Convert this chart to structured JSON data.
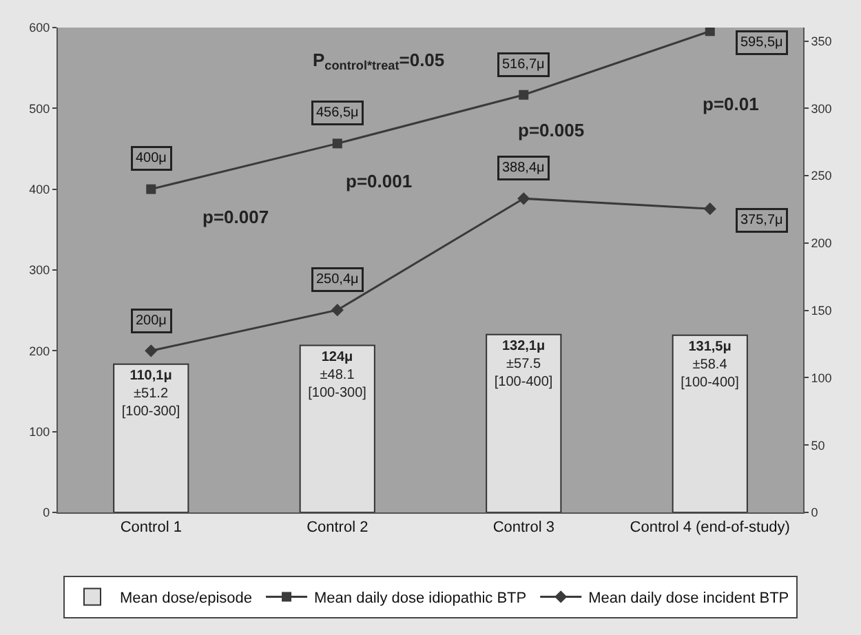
{
  "chart_data": {
    "type": "bar",
    "categories": [
      "Control 1",
      "Control 2",
      "Control 3",
      "Control 4 (end-of-study)"
    ],
    "series": [
      {
        "name": "Mean dose/episode",
        "axis": "y2",
        "color": "#e0e0e0",
        "values": [
          110.1,
          124,
          132.1,
          131.5
        ],
        "value_labels": [
          "110,1μ\n±51.2\n[100-300]",
          "124μ\n±48.1\n[100-300]",
          "132,1μ\n±57.5\n[100-400]",
          "131,5μ\n±58.4\n[100-400]"
        ]
      },
      {
        "name": "Mean daily dose idiopathic BTP",
        "type": "line",
        "marker": "square",
        "color": "#3a3a3a",
        "values": [
          400,
          456.5,
          516.7,
          595.5
        ],
        "value_labels": [
          "400μ",
          "456,5μ",
          "516,7μ",
          "595,5μ"
        ]
      },
      {
        "name": "Mean daily dose incident BTP",
        "type": "line",
        "marker": "diamond",
        "color": "#3a3a3a",
        "values": [
          200,
          250.4,
          388.4,
          375.7
        ],
        "value_labels": [
          "200μ",
          "250,4μ",
          "388,4μ",
          "375,7μ"
        ]
      }
    ],
    "ylim": [
      0,
      600
    ],
    "yticks": [
      0,
      100,
      200,
      300,
      400,
      500,
      600
    ],
    "y2lim": [
      0,
      360
    ],
    "y2ticks": [
      0,
      50,
      100,
      150,
      200,
      250,
      300,
      350
    ],
    "annotations": [
      "P$_{control*treat}$=0.05",
      "p=0.007",
      "p=0.001",
      "p=0.005",
      "p=0.01"
    ],
    "grid": false,
    "legend": "bottom",
    "line_style": "solid"
  }
}
